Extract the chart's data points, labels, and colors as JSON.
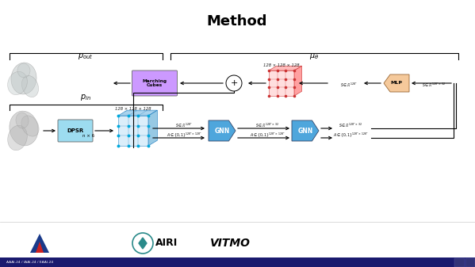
{
  "title": "Method",
  "title_fontsize": 13,
  "bg_color": "#ffffff",
  "fig_width": 5.99,
  "fig_height": 3.37,
  "pin_label": "$p_{in}$",
  "pout_label": "$p_{out}$",
  "mu_label": "$\\mu_\\theta$",
  "dpsr_color": "#9DDCF0",
  "dpsr_text": "DPSR",
  "marching_color": "#CC99FF",
  "marching_text": "Marching\nCubes",
  "gnn_color": "#4ea6dc",
  "mlp_color": "#F5C99B",
  "grid_top_label": "128 × 128 × 128",
  "grid_bot_label": "128 × 128 × 128",
  "nk6_text": "n × 6",
  "bottom_bar_color": "#1a1a6e",
  "bottom_text": "AAAI-24 / IAAI-24 / EAAI-24"
}
